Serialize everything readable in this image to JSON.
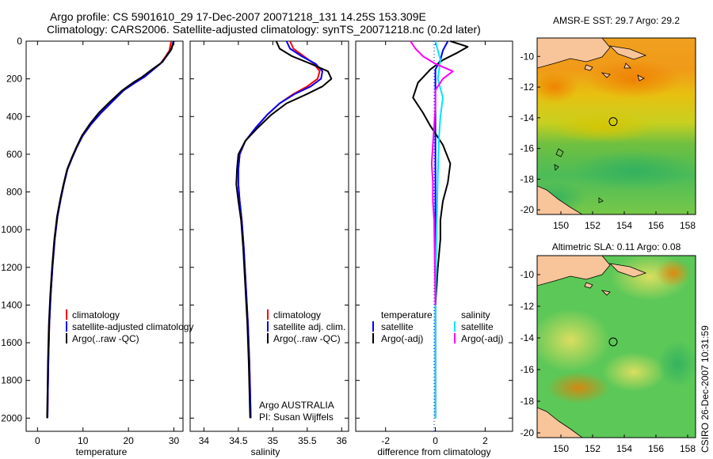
{
  "header": {
    "line1": "Argo profile: CS 5901610_29 17-Dec-2007 20071218_131 14.25S 153.309E",
    "line2": "Climatology: CARS2006. Satellite-adjusted climatology: synTS_20071218.nc (0.2d later)"
  },
  "side_label": "CSIRO 26-Dec-2007 10:31:59",
  "colors": {
    "climatology": "#ff0000",
    "satellite": "#0000ff",
    "argo": "#000000",
    "salinity_satellite": "#00e5ff",
    "salinity_argo": "#ff00ff",
    "land": "#f8c49a",
    "marker": "#000000"
  },
  "chart_data": [
    {
      "type": "line",
      "name": "temperature-profile",
      "xlabel": "temperature",
      "xlim": [
        -2.5,
        32
      ],
      "ylim": [
        0,
        2070
      ],
      "x_ticks": [
        0,
        10,
        20,
        30
      ],
      "y_ticks": [
        0,
        200,
        400,
        600,
        800,
        1000,
        1200,
        1400,
        1600,
        1800,
        2000
      ],
      "legend": {
        "position": "bottom-right",
        "entries": [
          "climatology",
          "satellite-adjusted climatology",
          "Argo(..raw -QC)"
        ]
      },
      "series": [
        {
          "name": "climatology",
          "color": "#ff0000",
          "x": [
            29.4,
            29.0,
            28.2,
            27.0,
            25.5,
            23.5,
            21.5,
            19.0,
            16.5,
            14.0,
            11.8,
            10.0,
            8.7,
            7.6,
            6.6,
            5.8,
            5.1,
            4.4,
            3.8,
            3.3,
            2.9,
            2.6,
            2.4,
            2.3,
            2.2
          ],
          "depth": [
            0,
            50,
            80,
            120,
            150,
            190,
            220,
            260,
            320,
            380,
            440,
            500,
            560,
            620,
            680,
            760,
            840,
            930,
            1050,
            1200,
            1350,
            1500,
            1700,
            1850,
            2000
          ]
        },
        {
          "name": "satellite-adjusted climatology",
          "color": "#0000ff",
          "x": [
            29.9,
            29.3,
            28.4,
            27.0,
            25.5,
            23.5,
            21.5,
            19.0,
            16.5,
            14.0,
            11.8,
            10.0,
            8.7,
            7.6,
            6.6,
            5.8,
            5.1,
            4.4,
            3.8,
            3.3,
            2.9,
            2.6,
            2.4,
            2.3,
            2.2
          ],
          "depth": [
            0,
            50,
            80,
            120,
            150,
            190,
            220,
            260,
            320,
            380,
            440,
            500,
            560,
            620,
            680,
            760,
            840,
            930,
            1050,
            1200,
            1350,
            1500,
            1700,
            1850,
            2000
          ]
        },
        {
          "name": "Argo(..raw -QC)",
          "color": "#000000",
          "x": [
            30.0,
            29.5,
            28.6,
            27.5,
            25.2,
            23.0,
            21.0,
            18.7,
            16.0,
            13.5,
            11.5,
            9.8,
            8.6,
            7.5,
            6.5,
            5.7,
            5.0,
            4.3,
            3.7,
            3.2,
            2.8,
            2.5,
            2.3,
            2.2,
            2.1
          ],
          "depth": [
            0,
            40,
            70,
            110,
            150,
            190,
            220,
            260,
            320,
            380,
            440,
            500,
            560,
            620,
            680,
            760,
            840,
            930,
            1050,
            1200,
            1350,
            1500,
            1700,
            1850,
            2000
          ]
        }
      ]
    },
    {
      "type": "line",
      "name": "salinity-profile",
      "xlabel": "salinity",
      "xlim": [
        33.8,
        36.1
      ],
      "ylim": [
        0,
        2070
      ],
      "x_ticks": [
        34,
        34.5,
        35,
        35.5,
        36
      ],
      "y_ticks": [
        0,
        200,
        400,
        600,
        800,
        1000,
        1200,
        1400,
        1600,
        1800,
        2000
      ],
      "legend": {
        "position": "bottom-right",
        "entries": [
          "climatology",
          "satellite adj. clim.",
          "Argo(..raw -QC)"
        ]
      },
      "annotation": [
        "Argo AUSTRALIA",
        "PI: Susan Wijffels"
      ],
      "series": [
        {
          "name": "climatology",
          "color": "#ff0000",
          "x": [
            35.25,
            35.3,
            35.45,
            35.6,
            35.68,
            35.65,
            35.5,
            35.3,
            35.1,
            34.92,
            34.75,
            34.6,
            34.52,
            34.5,
            34.5,
            34.52,
            34.55,
            34.58,
            34.61,
            34.64,
            34.66,
            34.67,
            34.68
          ],
          "depth": [
            0,
            40,
            80,
            120,
            160,
            200,
            240,
            280,
            330,
            390,
            460,
            530,
            600,
            680,
            760,
            850,
            950,
            1100,
            1300,
            1500,
            1700,
            1850,
            2000
          ]
        },
        {
          "name": "satellite adj. clim.",
          "color": "#0000ff",
          "x": [
            35.2,
            35.25,
            35.42,
            35.62,
            35.72,
            35.7,
            35.55,
            35.32,
            35.1,
            34.92,
            34.75,
            34.6,
            34.52,
            34.5,
            34.5,
            34.52,
            34.55,
            34.58,
            34.61,
            34.64,
            34.66,
            34.67,
            34.68
          ],
          "depth": [
            0,
            40,
            80,
            120,
            160,
            200,
            240,
            280,
            330,
            390,
            460,
            530,
            600,
            680,
            760,
            850,
            950,
            1100,
            1300,
            1500,
            1700,
            1850,
            2000
          ]
        },
        {
          "name": "Argo(..raw -QC)",
          "color": "#000000",
          "x": [
            35.05,
            35.1,
            35.28,
            35.55,
            35.8,
            35.85,
            35.72,
            35.5,
            35.2,
            34.98,
            34.78,
            34.6,
            34.5,
            34.48,
            34.47,
            34.5,
            34.54,
            34.57,
            34.6,
            34.63,
            34.65,
            34.66,
            34.67
          ],
          "depth": [
            0,
            40,
            80,
            120,
            160,
            200,
            240,
            280,
            330,
            390,
            460,
            530,
            600,
            680,
            760,
            850,
            950,
            1100,
            1300,
            1500,
            1700,
            1850,
            2000
          ]
        }
      ]
    },
    {
      "type": "line",
      "name": "difference-profile",
      "xlabel": "difference from climatology",
      "xlim": [
        -3.2,
        3.1
      ],
      "ylim": [
        0,
        2070
      ],
      "x_ticks": [
        -2,
        0,
        2
      ],
      "y_ticks": [
        0,
        200,
        400,
        600,
        800,
        1000,
        1200,
        1400,
        1600,
        1800,
        2000
      ],
      "legend": {
        "position": "bottom",
        "temperature_title": "temperature",
        "salinity_title": "salinity",
        "entries": [
          "satellite",
          "Argo(-adj)",
          "satellite",
          "Argo(-adj)"
        ]
      },
      "series": [
        {
          "name": "temperature satellite",
          "color": "#0000ff",
          "x": [
            0.5,
            0.3,
            0.2,
            0.0,
            0.0,
            0.0,
            0.0,
            0.0,
            0.0,
            0.0,
            0.0
          ],
          "depth": [
            0,
            50,
            100,
            150,
            200,
            400,
            800,
            1200,
            1600,
            1800,
            2000
          ]
        },
        {
          "name": "temperature Argo(-adj)",
          "color": "#000000",
          "x": [
            0.6,
            1.3,
            0.9,
            0.3,
            -0.2,
            -0.7,
            -0.9,
            -0.5,
            -0.2,
            0.3,
            0.6,
            0.5,
            0.3,
            0.2,
            0.2,
            0.1,
            0.0,
            0.0,
            0.0,
            0.0
          ],
          "depth": [
            0,
            30,
            60,
            100,
            150,
            220,
            300,
            380,
            450,
            550,
            650,
            750,
            850,
            950,
            1050,
            1200,
            1400,
            1600,
            1800,
            2000
          ]
        },
        {
          "name": "salinity satellite",
          "color": "#00e5ff",
          "x": [
            0.0,
            0.2,
            0.1,
            0.3,
            0.2,
            0.15,
            0.1,
            0.05,
            0.0,
            0.0
          ],
          "depth": [
            0,
            100,
            200,
            300,
            400,
            500,
            700,
            1000,
            1400,
            2000
          ]
        },
        {
          "name": "salinity Argo(-adj)",
          "color": "#ff00ff",
          "x": [
            -1.0,
            -0.8,
            -0.5,
            0.0,
            0.7,
            0.3,
            0.0,
            0.0,
            -0.05,
            -0.1,
            -0.15,
            -0.1,
            -0.1,
            -0.05,
            0.0
          ],
          "depth": [
            0,
            40,
            80,
            120,
            160,
            200,
            260,
            350,
            450,
            550,
            650,
            750,
            850,
            950,
            1400
          ]
        }
      ]
    },
    {
      "type": "heatmap",
      "name": "sst-map",
      "title": "AMSR-E SST: 29.7  Argo: 29.2",
      "xlim": [
        148.5,
        158.5
      ],
      "ylim": [
        -20.3,
        -8.8
      ],
      "x_ticks": [
        150,
        152,
        154,
        156,
        158
      ],
      "y_ticks": [
        -10,
        -12,
        -14,
        -16,
        -18,
        -20
      ],
      "marker": {
        "lon": 153.3,
        "lat": -14.25
      }
    },
    {
      "type": "heatmap",
      "name": "sla-map",
      "title": "Altimetric SLA: 0.11  Argo: 0.08",
      "xlim": [
        148.5,
        158.5
      ],
      "ylim": [
        -20.3,
        -8.8
      ],
      "x_ticks": [
        150,
        152,
        154,
        156,
        158
      ],
      "y_ticks": [
        -10,
        -12,
        -14,
        -16,
        -18,
        -20
      ],
      "marker": {
        "lon": 153.3,
        "lat": -14.25
      }
    }
  ]
}
